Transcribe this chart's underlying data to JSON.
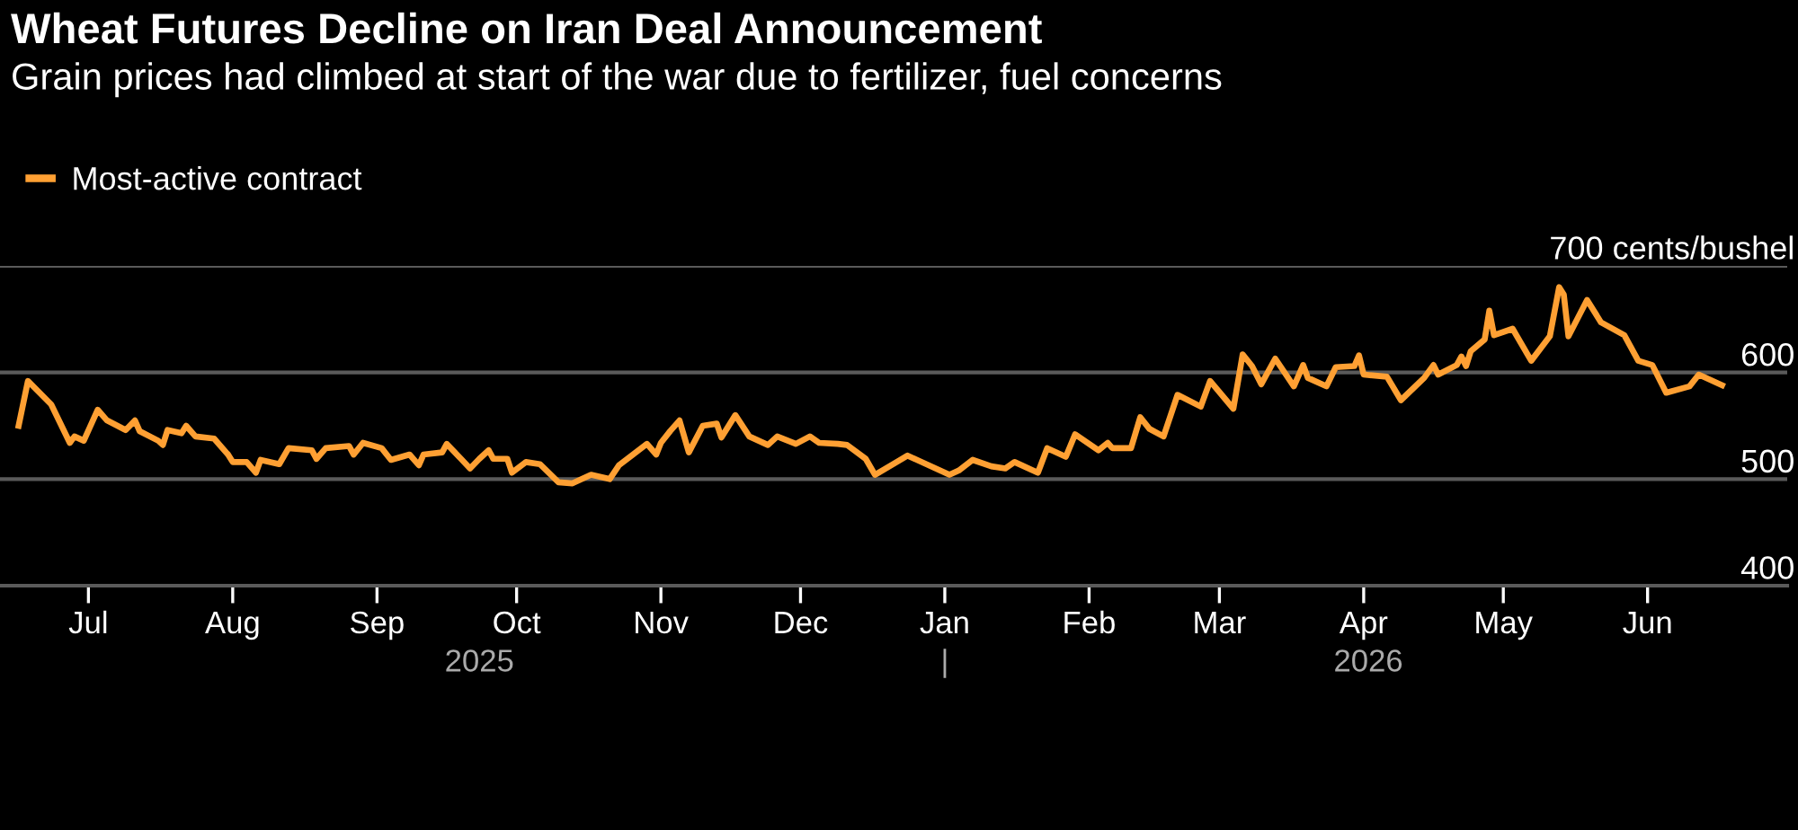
{
  "chart_data": {
    "type": "line",
    "title": "Wheat Futures Decline on Iran Deal Announcement",
    "subtitle": "Grain prices had climbed at start of the war due to fertilizer, fuel concerns",
    "series": [
      {
        "name": "Most-active contract",
        "color": "#ffa033",
        "x": [
          "2025-06-16",
          "2025-06-18",
          "2025-06-23",
          "2025-06-27",
          "2025-06-28",
          "2025-06-30",
          "2025-07-03",
          "2025-07-05",
          "2025-07-09",
          "2025-07-11",
          "2025-07-12",
          "2025-07-16",
          "2025-07-17",
          "2025-07-18",
          "2025-07-21",
          "2025-07-22",
          "2025-07-24",
          "2025-07-28",
          "2025-07-31",
          "2025-08-01",
          "2025-08-04",
          "2025-08-06",
          "2025-08-07",
          "2025-08-11",
          "2025-08-13",
          "2025-08-18",
          "2025-08-19",
          "2025-08-21",
          "2025-08-26",
          "2025-08-27",
          "2025-08-29",
          "2025-09-02",
          "2025-09-04",
          "2025-09-08",
          "2025-09-10",
          "2025-09-11",
          "2025-09-15",
          "2025-09-16",
          "2025-09-21",
          "2025-09-23",
          "2025-09-25",
          "2025-09-26",
          "2025-09-29",
          "2025-09-30",
          "2025-10-03",
          "2025-10-06",
          "2025-10-10",
          "2025-10-13",
          "2025-10-17",
          "2025-10-21",
          "2025-10-23",
          "2025-10-29",
          "2025-10-31",
          "2025-11-01",
          "2025-11-03",
          "2025-11-05",
          "2025-11-07",
          "2025-11-10",
          "2025-11-13",
          "2025-11-14",
          "2025-11-17",
          "2025-11-20",
          "2025-11-24",
          "2025-11-26",
          "2025-11-30",
          "2025-12-03",
          "2025-12-05",
          "2025-12-09",
          "2025-12-11",
          "2025-12-15",
          "2025-12-17",
          "2025-12-24",
          "2026-01-02",
          "2026-01-04",
          "2026-01-07",
          "2026-01-11",
          "2026-01-14",
          "2026-01-16",
          "2026-01-21",
          "2026-01-23",
          "2026-01-27",
          "2026-01-29",
          "2026-02-03",
          "2026-02-05",
          "2026-02-06",
          "2026-02-10",
          "2026-02-12",
          "2026-02-14",
          "2026-02-17",
          "2026-02-20",
          "2026-02-25",
          "2026-02-27",
          "2026-03-04",
          "2026-03-06",
          "2026-03-08",
          "2026-03-10",
          "2026-03-13",
          "2026-03-17",
          "2026-03-19",
          "2026-03-20",
          "2026-03-24",
          "2026-03-26",
          "2026-03-30",
          "2026-03-31",
          "2026-04-01",
          "2026-04-06",
          "2026-04-09",
          "2026-04-14",
          "2026-04-16",
          "2026-04-17",
          "2026-04-21",
          "2026-04-22",
          "2026-04-23",
          "2026-04-24",
          "2026-04-27",
          "2026-04-28",
          "2026-04-29",
          "2026-05-03",
          "2026-05-07",
          "2026-05-11",
          "2026-05-13",
          "2026-05-14",
          "2026-05-15",
          "2026-05-19",
          "2026-05-22",
          "2026-05-27",
          "2026-05-30",
          "2026-06-02",
          "2026-06-05",
          "2026-06-10",
          "2026-06-12",
          "2026-06-17"
        ],
        "values": [
          550,
          592,
          570,
          534,
          540,
          536,
          565,
          555,
          546,
          555,
          545,
          536,
          532,
          546,
          543,
          550,
          540,
          538,
          523,
          516,
          516,
          506,
          518,
          514,
          529,
          527,
          519,
          529,
          531,
          523,
          534,
          529,
          518,
          523,
          513,
          523,
          525,
          533,
          510,
          519,
          527,
          519,
          519,
          506,
          516,
          514,
          497,
          496,
          504,
          500,
          513,
          533,
          523,
          534,
          545,
          555,
          525,
          550,
          552,
          539,
          560,
          540,
          532,
          540,
          533,
          540,
          534,
          533,
          532,
          519,
          504,
          522,
          504,
          508,
          518,
          512,
          510,
          516,
          506,
          529,
          521,
          542,
          527,
          534,
          529,
          529,
          558,
          547,
          540,
          579,
          568,
          592,
          566,
          617,
          606,
          589,
          613,
          587,
          607,
          595,
          587,
          605,
          606,
          616,
          598,
          596,
          574,
          595,
          607,
          598,
          607,
          615,
          606,
          620,
          631,
          658,
          635,
          641,
          611,
          634,
          680,
          673,
          634,
          668,
          647,
          635,
          611,
          607,
          581,
          587,
          598,
          588
        ]
      }
    ],
    "xlim": [
      "2025-06-12",
      "2026-07-01"
    ],
    "xticks": [
      {
        "value": "2025-07-01",
        "label": "Jul"
      },
      {
        "value": "2025-08-01",
        "label": "Aug"
      },
      {
        "value": "2025-09-01",
        "label": "Sep"
      },
      {
        "value": "2025-10-01",
        "label": "Oct"
      },
      {
        "value": "2025-11-01",
        "label": "Nov"
      },
      {
        "value": "2025-12-01",
        "label": "Dec"
      },
      {
        "value": "2026-01-01",
        "label": "Jan"
      },
      {
        "value": "2026-02-01",
        "label": "Feb"
      },
      {
        "value": "2026-03-01",
        "label": "Mar"
      },
      {
        "value": "2026-04-01",
        "label": "Apr"
      },
      {
        "value": "2026-05-01",
        "label": "May"
      },
      {
        "value": "2026-06-01",
        "label": "Jun"
      }
    ],
    "x2lim": [
      "2025-06-12",
      "2026-07-01"
    ],
    "x2ticks": [
      {
        "value": "2025-09-23",
        "label": "2025"
      },
      {
        "value": "2026-01-01",
        "label": "|"
      },
      {
        "value": "2026-04-02",
        "label": "2026"
      }
    ],
    "ylim": [
      400,
      700
    ],
    "yticks": [
      400,
      500,
      600,
      {
        "value": 700,
        "label": "700 cents/bushel"
      }
    ],
    "grid": "y",
    "legend": "top left",
    "marker": "none",
    "line_style": "solid"
  }
}
